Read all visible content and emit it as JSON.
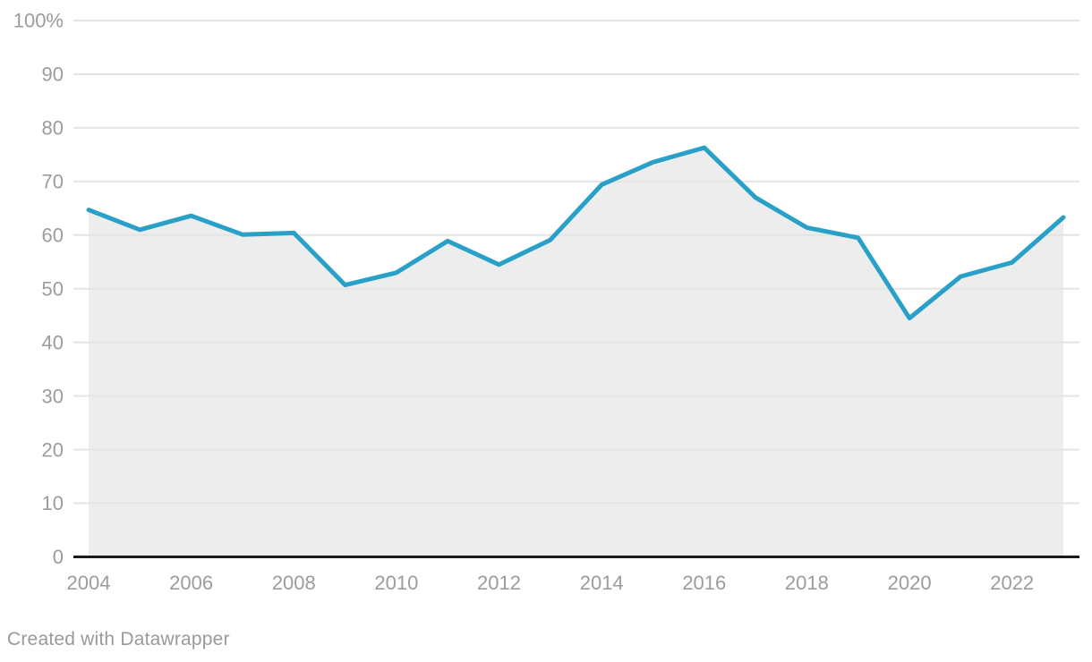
{
  "chart_data": {
    "type": "area",
    "title": "",
    "x": [
      2004,
      2005,
      2006,
      2007,
      2008,
      2009,
      2010,
      2011,
      2012,
      2013,
      2014,
      2015,
      2016,
      2017,
      2018,
      2019,
      2020,
      2021,
      2022,
      2023
    ],
    "values": [
      64.7,
      61.0,
      63.6,
      60.1,
      60.4,
      50.7,
      53.0,
      58.9,
      54.5,
      59.1,
      69.4,
      73.6,
      76.3,
      67.0,
      61.4,
      59.5,
      44.5,
      52.3,
      54.9,
      63.3
    ],
    "ylim": [
      0,
      100
    ],
    "unit": "%",
    "y_ticks": [
      0,
      10,
      20,
      30,
      40,
      50,
      60,
      70,
      80,
      90,
      100
    ],
    "y_tick_labels": [
      "0",
      "10",
      "20",
      "30",
      "40",
      "50",
      "60",
      "70",
      "80",
      "90",
      "100%"
    ],
    "x_tick_labels": [
      "2004",
      "2006",
      "2008",
      "2010",
      "2012",
      "2014",
      "2016",
      "2018",
      "2020",
      "2022"
    ],
    "grid": true,
    "legend_position": "none",
    "colors": {
      "line": "#28a0c8",
      "area_fill": "#ededed",
      "gridline": "#e4e4e4",
      "baseline": "#1a1a1a",
      "tick_label": "#9c9c9c"
    }
  },
  "footer": {
    "attribution": "Created with Datawrapper"
  }
}
